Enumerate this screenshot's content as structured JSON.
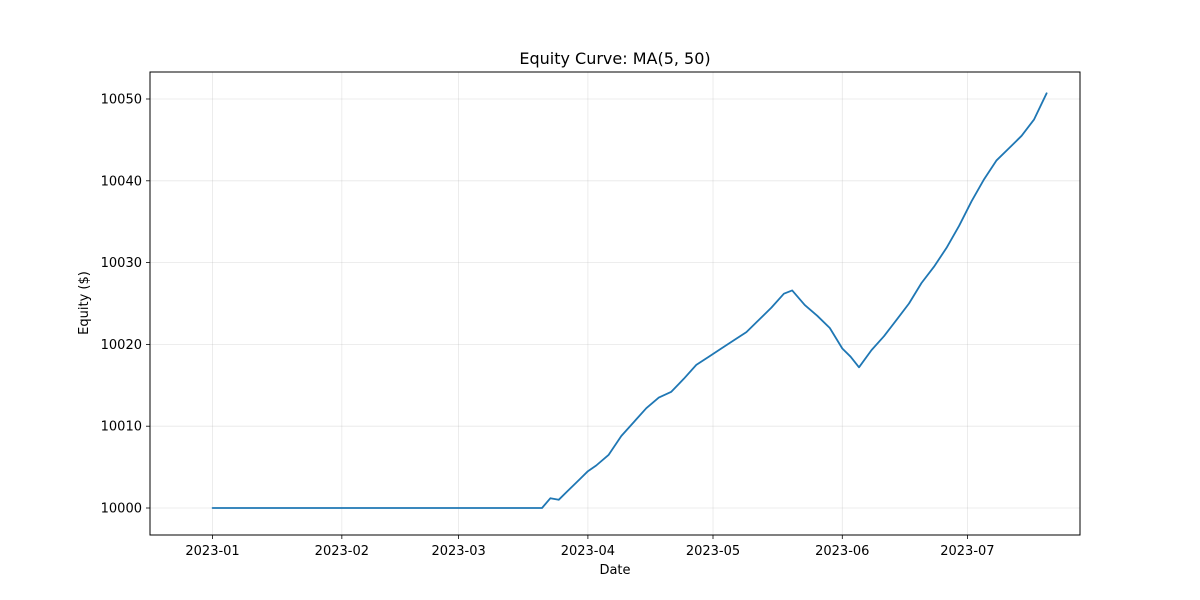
{
  "chart_data": {
    "type": "line",
    "title": "Equity Curve: MA(5, 50)",
    "xlabel": "Date",
    "ylabel": "Equity ($)",
    "x_ticks": [
      "2023-01",
      "2023-02",
      "2023-03",
      "2023-04",
      "2023-05",
      "2023-06",
      "2023-07"
    ],
    "y_ticks": [
      10000,
      10010,
      10020,
      10030,
      10040,
      10050
    ],
    "xlim": [
      "2022-12-17",
      "2023-07-28"
    ],
    "ylim": [
      9996.7,
      10053.3
    ],
    "grid": true,
    "color": "#1f77b4",
    "series": [
      {
        "x": [
          "2023-01-01",
          "2023-03-21",
          "2023-03-23",
          "2023-03-25",
          "2023-03-27",
          "2023-03-30",
          "2023-04-01",
          "2023-04-03",
          "2023-04-06",
          "2023-04-09",
          "2023-04-12",
          "2023-04-15",
          "2023-04-18",
          "2023-04-21",
          "2023-04-24",
          "2023-04-27",
          "2023-04-30",
          "2023-05-03",
          "2023-05-06",
          "2023-05-09",
          "2023-05-12",
          "2023-05-15",
          "2023-05-18",
          "2023-05-20",
          "2023-05-23",
          "2023-05-26",
          "2023-05-29",
          "2023-06-01",
          "2023-06-03",
          "2023-06-05",
          "2023-06-08",
          "2023-06-11",
          "2023-06-14",
          "2023-06-17",
          "2023-06-20",
          "2023-06-23",
          "2023-06-26",
          "2023-06-29",
          "2023-07-02",
          "2023-07-05",
          "2023-07-08",
          "2023-07-11",
          "2023-07-14",
          "2023-07-17",
          "2023-07-20"
        ],
        "y": [
          10000,
          10000,
          10001.2,
          10001,
          10002,
          10003.5,
          10004.5,
          10005.2,
          10006.5,
          10008.8,
          10010.5,
          10012.2,
          10013.5,
          10014.2,
          10015.8,
          10017.5,
          10018.5,
          10019.5,
          10020.5,
          10021.5,
          10023,
          10024.5,
          10026.2,
          10026.6,
          10024.8,
          10023.5,
          10022,
          10019.5,
          10018.5,
          10017.2,
          10019.3,
          10021,
          10023,
          10025,
          10027.5,
          10029.5,
          10031.8,
          10034.5,
          10037.5,
          10040.2,
          10042.5,
          10044,
          10045.5,
          10047.5,
          10050.7
        ]
      }
    ]
  }
}
